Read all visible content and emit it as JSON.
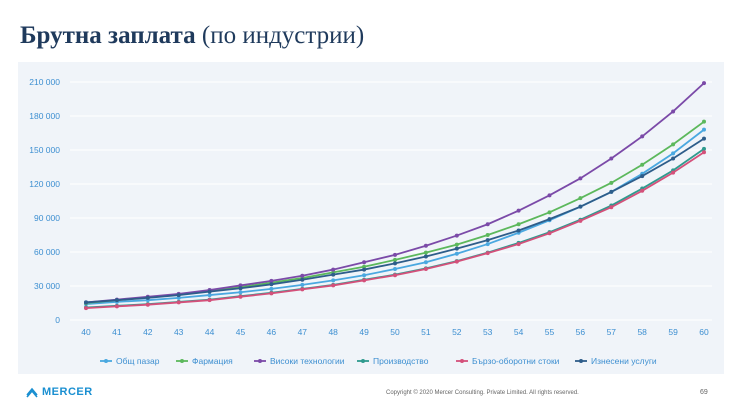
{
  "header": {
    "title_main": "Брутна заплата",
    "title_paren": "(по индустрии)"
  },
  "footer": {
    "logo_text": "MERCER",
    "copyright": "Copyright © 2020 Mercer Consulting. Private Limited. All rights reserved.",
    "page_number": "69"
  },
  "chart_data": {
    "type": "line",
    "title": "",
    "xlabel": "",
    "ylabel": "",
    "x": [
      "40",
      "41",
      "42",
      "43",
      "44",
      "45",
      "46",
      "47",
      "48",
      "49",
      "50",
      "51",
      "52",
      "53",
      "54",
      "55",
      "56",
      "57",
      "58",
      "59",
      "60"
    ],
    "ylim": [
      0,
      210000
    ],
    "yticks": [
      0,
      30000,
      60000,
      90000,
      120000,
      150000,
      180000,
      210000
    ],
    "ytick_labels": [
      "0",
      "30 000",
      "60 000",
      "90 000",
      "120 000",
      "150 000",
      "180 000",
      "210 000"
    ],
    "grid": true,
    "legend_position": "bottom",
    "series": [
      {
        "name": "Общ пазар",
        "color": "#4aa8e0",
        "values": [
          14000,
          16000,
          17500,
          19500,
          22000,
          24500,
          27500,
          31000,
          35000,
          39500,
          45000,
          51000,
          58500,
          67000,
          77000,
          88000,
          100000,
          113000,
          129000,
          147000,
          168000
        ]
      },
      {
        "name": "Фармация",
        "color": "#5cb85c",
        "values": [
          15000,
          17500,
          20000,
          22500,
          25500,
          29000,
          33000,
          37000,
          42000,
          47000,
          53000,
          59500,
          66500,
          75000,
          84500,
          95000,
          107500,
          121000,
          137000,
          155000,
          175000
        ]
      },
      {
        "name": "Високи технологии",
        "color": "#7b4aa8",
        "values": [
          15500,
          18000,
          20500,
          23000,
          26500,
          30500,
          34500,
          39000,
          44500,
          51000,
          57500,
          65500,
          74500,
          84500,
          96500,
          110000,
          125000,
          142500,
          162000,
          184000,
          209000
        ]
      },
      {
        "name": "Производство",
        "color": "#2f9a8e",
        "values": [
          11000,
          12500,
          14000,
          16000,
          18000,
          21000,
          24000,
          27500,
          31000,
          35500,
          40000,
          45500,
          52000,
          59500,
          68000,
          77500,
          88500,
          101000,
          116000,
          132000,
          151000
        ]
      },
      {
        "name": "Бързо-оборотни стоки",
        "color": "#d4507a",
        "values": [
          10500,
          12000,
          13500,
          15500,
          17500,
          20500,
          23500,
          27000,
          30500,
          35000,
          39500,
          45000,
          51500,
          59000,
          67000,
          76500,
          87500,
          99500,
          114000,
          130000,
          148000
        ]
      },
      {
        "name": "Изнесени услуги",
        "color": "#2e5d8a",
        "values": [
          15500,
          17500,
          19500,
          22000,
          25000,
          28000,
          31500,
          35500,
          40000,
          44500,
          50000,
          56000,
          63000,
          70500,
          79000,
          89000,
          100000,
          113000,
          127000,
          142500,
          160000
        ]
      }
    ]
  }
}
